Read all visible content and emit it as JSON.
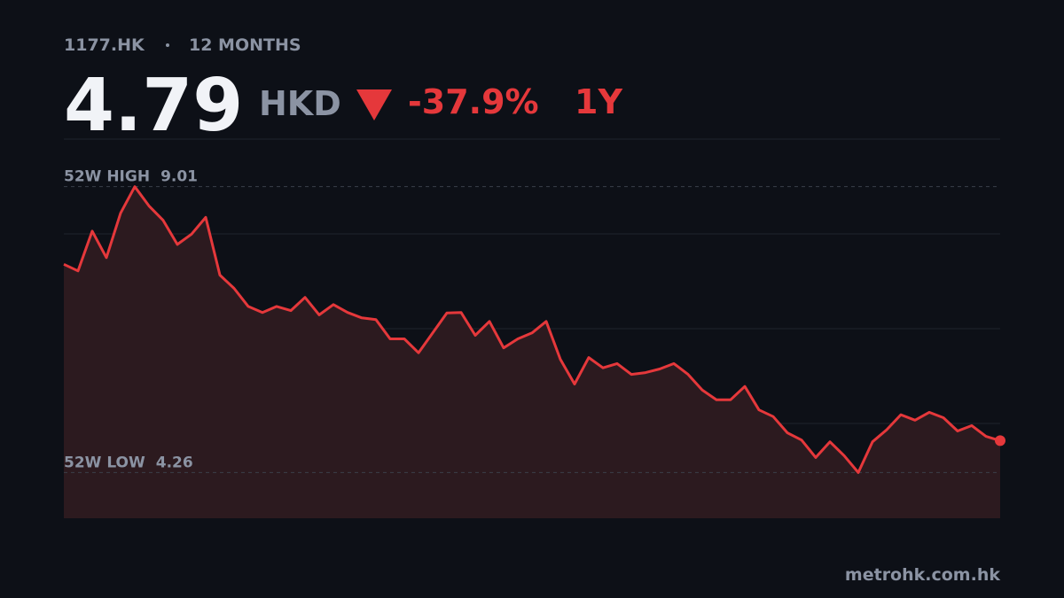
{
  "chart_data": {
    "type": "line",
    "ticker": "1177.HK",
    "period": "12 MONTHS",
    "price": 4.79,
    "currency": "HKD",
    "change": {
      "value": -37.9,
      "label": "-37.9%"
    },
    "change_period": "1Y",
    "high_label": "52W HIGH",
    "high": 9.01,
    "low_label": "52W LOW",
    "low": 4.26,
    "source": "metrohk.com.hk",
    "color": "#e5383b",
    "ylim": [
      3.5,
      9.8
    ],
    "values": [
      7.72,
      7.61,
      8.27,
      7.83,
      8.57,
      9.01,
      8.69,
      8.45,
      8.05,
      8.22,
      8.5,
      7.54,
      7.32,
      7.02,
      6.92,
      7.02,
      6.95,
      7.17,
      6.88,
      7.05,
      6.92,
      6.83,
      6.8,
      6.48,
      6.48,
      6.25,
      6.58,
      6.91,
      6.92,
      6.54,
      6.77,
      6.33,
      6.48,
      6.58,
      6.77,
      6.14,
      5.73,
      6.17,
      6.0,
      6.07,
      5.89,
      5.92,
      5.98,
      6.07,
      5.89,
      5.63,
      5.47,
      5.47,
      5.69,
      5.3,
      5.19,
      4.92,
      4.8,
      4.51,
      4.77,
      4.54,
      4.26,
      4.77,
      4.97,
      5.22,
      5.13,
      5.26,
      5.17,
      4.95,
      5.04,
      4.86,
      4.79
    ]
  }
}
